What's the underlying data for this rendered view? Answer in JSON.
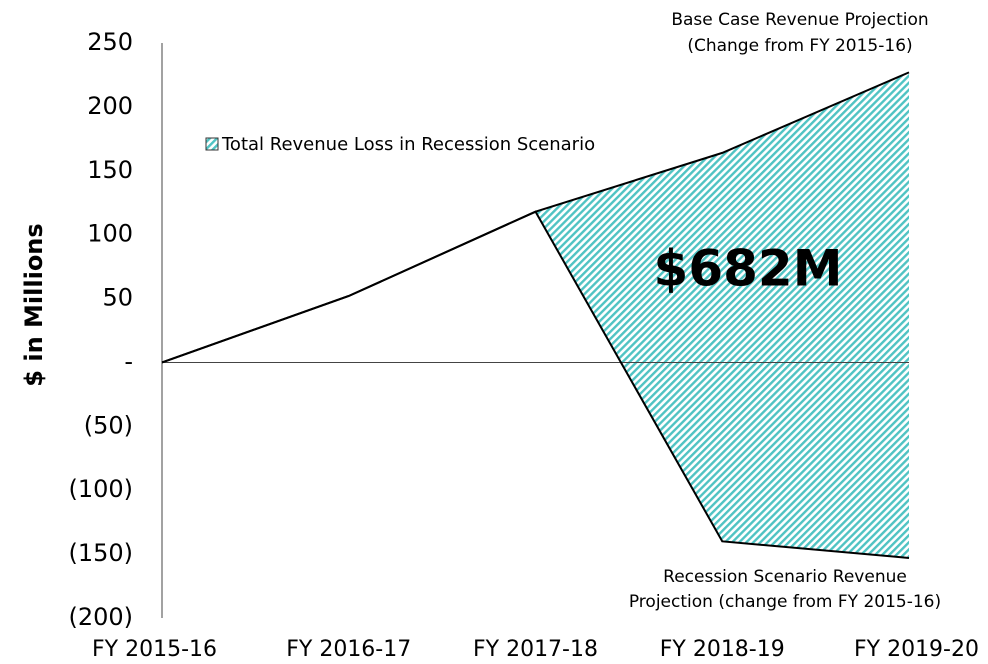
{
  "chart_data": {
    "type": "line",
    "y_label": "$ in Millions",
    "categories": [
      "FY 2015-16",
      "FY 2016-17",
      "FY 2017-18",
      "FY 2018-19",
      "FY 2019-20"
    ],
    "series": [
      {
        "label": [
          "Base Case Revenue Projection",
          "(Change from FY 2015-16)"
        ],
        "color": "#000000",
        "values": [
          0,
          52,
          118,
          164,
          227
        ]
      },
      {
        "label": [
          "Recession Scenario Revenue",
          "Projection (change from FY 2015-16)"
        ],
        "color": "#000000",
        "values": [
          0,
          52,
          118,
          -140,
          -153
        ]
      }
    ],
    "area": {
      "name": "Total Revenue Loss in Recession Scenario",
      "color": "#4fc3c3",
      "label": "$682M"
    },
    "ylim": [
      -200,
      250
    ],
    "yticks": [
      {
        "value": -200,
        "label": "(200)"
      },
      {
        "value": -150,
        "label": "(150)"
      },
      {
        "value": -100,
        "label": "(100)"
      },
      {
        "value": -50,
        "label": "(50)"
      },
      {
        "value": 0,
        "label": "-"
      },
      50,
      100,
      150,
      200,
      250
    ]
  }
}
